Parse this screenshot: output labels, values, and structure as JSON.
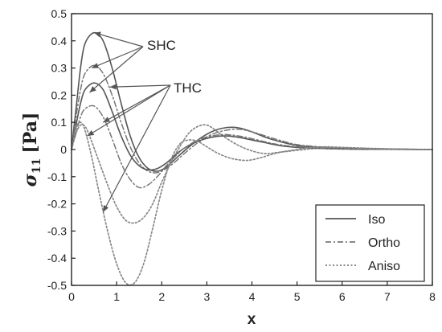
{
  "chart_data": {
    "type": "line",
    "title": "",
    "xlabel": "x",
    "ylabel_symbol": "σ",
    "ylabel_subscript": "11",
    "ylabel_unit": "[Pa]",
    "xlim": [
      0,
      8
    ],
    "ylim": [
      -0.5,
      0.5
    ],
    "xticks": [
      0,
      1,
      2,
      3,
      4,
      5,
      6,
      7,
      8
    ],
    "yticks": [
      -0.5,
      -0.4,
      -0.3,
      -0.2,
      -0.1,
      0,
      0.1,
      0.2,
      0.3,
      0.4,
      0.5
    ],
    "ytick_labels": [
      "-0.5",
      "-0.4",
      "-0.3",
      "-0.2",
      "-0.1",
      "0",
      "0.1",
      "0.2",
      "0.3",
      "0.4",
      "0.5"
    ],
    "grid": false,
    "legend_position": "bottom-right",
    "legend": [
      {
        "label": "Iso",
        "style": "solid"
      },
      {
        "label": "Ortho",
        "style": "dashdot"
      },
      {
        "label": "Aniso",
        "style": "dotted"
      }
    ],
    "annotations": [
      {
        "text": "SHC",
        "points_to_x": [
          0.5,
          0.45,
          0.4
        ],
        "points_to_y": [
          0.43,
          0.3,
          0.21
        ]
      },
      {
        "text": "THC",
        "points_to_x": [
          0.85,
          0.7,
          0.35,
          0.7
        ],
        "points_to_y": [
          0.23,
          0.1,
          0.05,
          -0.23
        ]
      }
    ],
    "series": [
      {
        "group": "SHC",
        "style": "solid",
        "x": [
          0,
          0.1,
          0.2,
          0.3,
          0.5,
          0.7,
          0.9,
          1.1,
          1.3,
          1.5,
          1.7,
          1.9,
          2.1,
          2.3,
          2.5,
          2.8,
          3.1,
          3.4,
          3.7,
          4.0,
          4.3,
          4.6,
          5.0,
          5.5,
          6.0,
          6.5,
          7.0,
          7.5,
          8.0
        ],
        "y": [
          0,
          0.15,
          0.3,
          0.39,
          0.43,
          0.4,
          0.3,
          0.17,
          0.05,
          -0.03,
          -0.07,
          -0.08,
          -0.065,
          -0.035,
          -0.005,
          0.035,
          0.065,
          0.08,
          0.08,
          0.065,
          0.045,
          0.03,
          0.015,
          0.008,
          0.005,
          0.003,
          0.002,
          0.001,
          0
        ]
      },
      {
        "group": "SHC",
        "style": "dashdot",
        "x": [
          0,
          0.1,
          0.2,
          0.3,
          0.5,
          0.7,
          0.9,
          1.1,
          1.3,
          1.5,
          1.7,
          1.9,
          2.1,
          2.3,
          2.5,
          2.8,
          3.1,
          3.4,
          3.7,
          4.0,
          4.3,
          4.6,
          5.0,
          5.5,
          6.0,
          6.5,
          7.0,
          7.5,
          8.0
        ],
        "y": [
          0,
          0.12,
          0.22,
          0.28,
          0.31,
          0.28,
          0.2,
          0.1,
          0.01,
          -0.05,
          -0.08,
          -0.085,
          -0.07,
          -0.045,
          -0.015,
          0.025,
          0.055,
          0.07,
          0.075,
          0.065,
          0.05,
          0.035,
          0.018,
          0.01,
          0.006,
          0.003,
          0.002,
          0.001,
          0
        ]
      },
      {
        "group": "SHC",
        "style": "dotted",
        "x": [
          0,
          0.1,
          0.2,
          0.3,
          0.4,
          0.6,
          0.8,
          1.0,
          1.2,
          1.4,
          1.6,
          1.8,
          2.0,
          2.2,
          2.4,
          2.6,
          2.8,
          3.0,
          3.2,
          3.4,
          3.7,
          4.0,
          4.3,
          4.6,
          5.0,
          5.5,
          6.0,
          6.5,
          7.0,
          7.5,
          8.0
        ],
        "y": [
          0,
          0.06,
          0.09,
          0.085,
          0.05,
          -0.04,
          -0.13,
          -0.21,
          -0.26,
          -0.27,
          -0.25,
          -0.2,
          -0.12,
          -0.05,
          0.01,
          0.06,
          0.085,
          0.09,
          0.07,
          0.045,
          0.015,
          -0.005,
          -0.015,
          -0.01,
          -0.003,
          0.005,
          0.006,
          0.004,
          0.002,
          0.001,
          0
        ]
      },
      {
        "group": "THC",
        "style": "solid",
        "x": [
          0,
          0.1,
          0.2,
          0.3,
          0.5,
          0.7,
          0.9,
          1.1,
          1.3,
          1.5,
          1.7,
          1.9,
          2.1,
          2.3,
          2.5,
          2.8,
          3.1,
          3.4,
          3.7,
          4.0,
          4.3,
          4.6,
          5.0,
          5.5,
          6.0,
          6.5,
          7.0,
          7.5,
          8.0
        ],
        "y": [
          0,
          0.09,
          0.17,
          0.22,
          0.245,
          0.22,
          0.14,
          0.05,
          -0.02,
          -0.06,
          -0.075,
          -0.07,
          -0.05,
          -0.02,
          0.005,
          0.03,
          0.045,
          0.05,
          0.045,
          0.035,
          0.025,
          0.015,
          0.008,
          0.004,
          0.002,
          0.001,
          0.001,
          0,
          0
        ]
      },
      {
        "group": "THC",
        "style": "dashdot",
        "x": [
          0,
          0.1,
          0.2,
          0.3,
          0.5,
          0.7,
          0.9,
          1.1,
          1.3,
          1.5,
          1.7,
          1.9,
          2.1,
          2.3,
          2.5,
          2.8,
          3.1,
          3.4,
          3.7,
          4.0,
          4.3,
          4.6,
          5.0,
          5.5,
          6.0,
          6.5,
          7.0,
          7.5,
          8.0
        ],
        "y": [
          0,
          0.06,
          0.12,
          0.15,
          0.16,
          0.12,
          0.04,
          -0.05,
          -0.11,
          -0.14,
          -0.13,
          -0.1,
          -0.06,
          -0.025,
          0.005,
          0.035,
          0.05,
          0.055,
          0.05,
          0.04,
          0.028,
          0.018,
          0.01,
          0.005,
          0.003,
          0.002,
          0.001,
          0,
          0
        ]
      },
      {
        "group": "THC",
        "style": "dotted",
        "x": [
          0,
          0.1,
          0.2,
          0.3,
          0.45,
          0.6,
          0.8,
          1.0,
          1.2,
          1.4,
          1.6,
          1.8,
          2.0,
          2.2,
          2.4,
          2.6,
          2.8,
          3.0,
          3.2,
          3.4,
          3.6,
          3.9,
          4.2,
          4.5,
          4.8,
          5.2,
          5.6,
          6.0,
          6.5,
          7.0,
          7.5,
          8.0
        ],
        "y": [
          0,
          0.08,
          0.1,
          0.07,
          -0.03,
          -0.15,
          -0.3,
          -0.42,
          -0.49,
          -0.49,
          -0.42,
          -0.29,
          -0.15,
          -0.04,
          0.02,
          0.035,
          0.03,
          0.01,
          -0.01,
          -0.025,
          -0.035,
          -0.04,
          -0.03,
          -0.015,
          -0.005,
          0.005,
          0.01,
          0.008,
          0.005,
          0.003,
          0.001,
          0
        ]
      }
    ]
  }
}
